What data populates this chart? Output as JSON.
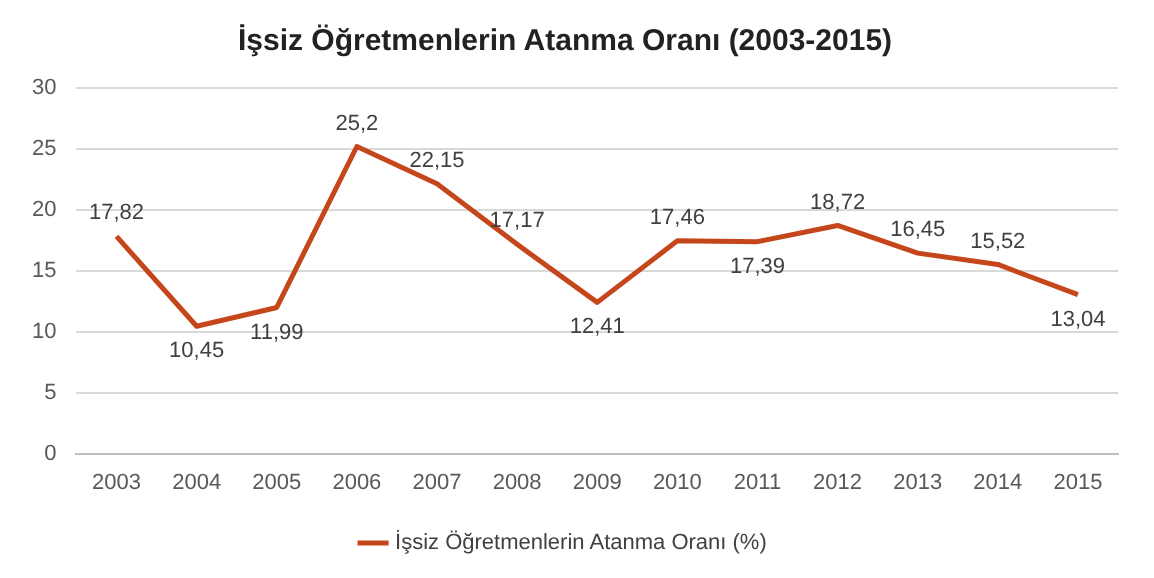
{
  "chart_data": {
    "type": "line",
    "title": "İşsiz Öğretmenlerin Atanma Oranı (2003-2015)",
    "categories": [
      "2003",
      "2004",
      "2005",
      "2006",
      "2007",
      "2008",
      "2009",
      "2010",
      "2011",
      "2012",
      "2013",
      "2014",
      "2015"
    ],
    "series": [
      {
        "name": "İşsiz Öğretmenlerin Atanma Oranı (%)",
        "color": "#c5461b",
        "values": [
          17.82,
          10.45,
          11.99,
          25.2,
          22.15,
          17.17,
          12.41,
          17.46,
          17.39,
          18.72,
          16.45,
          15.52,
          13.04
        ],
        "value_labels": [
          "17,82",
          "10,45",
          "11,99",
          "25,2",
          "22,15",
          "17,17",
          "12,41",
          "17,46",
          "17,39",
          "18,72",
          "16,45",
          "15,52",
          "13,04"
        ]
      }
    ],
    "ylim": [
      0,
      30
    ],
    "yticks": [
      0,
      5,
      10,
      15,
      20,
      25,
      30
    ],
    "grid": "y",
    "legend": "bottom",
    "marker": "none"
  }
}
